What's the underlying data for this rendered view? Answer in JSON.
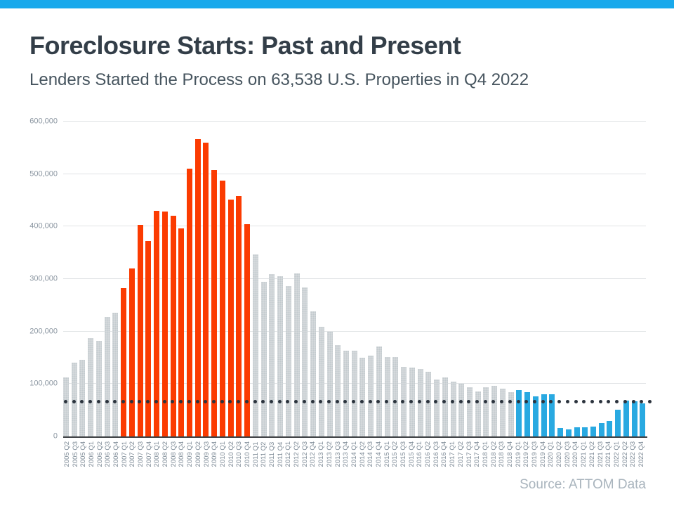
{
  "page": {
    "accent_bar_color": "#18a9ec",
    "title": "Foreclosure Starts: Past and Present",
    "subtitle": "Lenders Started the Process on 63,538 U.S. Properties in Q4 2022",
    "source": "Source: ATTOM Data"
  },
  "chart_data": {
    "type": "bar",
    "title": "Foreclosure Starts: Past and Present",
    "subtitle": "Lenders Started the Process on 63,538 U.S. Properties in Q4 2022",
    "xlabel": "",
    "ylabel": "",
    "ylim": [
      0,
      600000
    ],
    "grid": true,
    "legend": false,
    "yticks": [
      0,
      100000,
      200000,
      300000,
      400000,
      500000,
      600000
    ],
    "ytick_labels": [
      "0",
      "100,000",
      "200,000",
      "300,000",
      "400,000",
      "500,000",
      "600,000"
    ],
    "categories": [
      "2005 Q2",
      "2005 Q3",
      "2005 Q4",
      "2006 Q1",
      "2006 Q2",
      "2006 Q3",
      "2006 Q4",
      "2007 Q1",
      "2007 Q2",
      "2007 Q3",
      "2007 Q4",
      "2008 Q1",
      "2008 Q2",
      "2008 Q3",
      "2008 Q4",
      "2009 Q1",
      "2009 Q2",
      "2009 Q3",
      "2009 Q4",
      "2010 Q1",
      "2010 Q2",
      "2010 Q3",
      "2010 Q4",
      "2011 Q1",
      "2011 Q2",
      "2011 Q3",
      "2011 Q4",
      "2012 Q1",
      "2012 Q2",
      "2012 Q3",
      "2012 Q4",
      "2013 Q1",
      "2013 Q2",
      "2013 Q3",
      "2013 Q4",
      "2014 Q1",
      "2014 Q2",
      "2014 Q3",
      "2014 Q4",
      "2015 Q1",
      "2015 Q2",
      "2015 Q3",
      "2015 Q4",
      "2016 Q1",
      "2016 Q2",
      "2016 Q3",
      "2016 Q4",
      "2017 Q1",
      "2017 Q2",
      "2017 Q3",
      "2017 Q4",
      "2018 Q1",
      "2018 Q2",
      "2018 Q3",
      "2018 Q4",
      "2019 Q1",
      "2019 Q2",
      "2019 Q3",
      "2019 Q4",
      "2020 Q1",
      "2020 Q2",
      "2020 Q3",
      "2020 Q4",
      "2021 Q1",
      "2021 Q2",
      "2021 Q3",
      "2021 Q4",
      "2022 Q1",
      "2022 Q2",
      "2022 Q3",
      "2022 Q4"
    ],
    "values": [
      112000,
      140000,
      146000,
      188000,
      182000,
      228000,
      236000,
      282000,
      320000,
      403000,
      373000,
      430000,
      429000,
      420000,
      397000,
      510000,
      566000,
      560000,
      507000,
      487000,
      451000,
      458000,
      404000,
      347000,
      294000,
      309000,
      305000,
      286000,
      311000,
      284000,
      238000,
      209000,
      199000,
      174000,
      163000,
      163000,
      150000,
      154000,
      172000,
      152000,
      152000,
      133000,
      131000,
      129000,
      123000,
      109000,
      113000,
      105000,
      101000,
      94000,
      86000,
      94000,
      97000,
      91000,
      84000,
      89000,
      85000,
      76000,
      81000,
      80000,
      16000,
      13000,
      17000,
      17000,
      19000,
      26000,
      29000,
      51000,
      68000,
      67000,
      63538
    ],
    "color_segments": [
      {
        "from": 0,
        "to": 6,
        "color": "gray"
      },
      {
        "from": 7,
        "to": 22,
        "color": "red"
      },
      {
        "from": 23,
        "to": 54,
        "color": "gray"
      },
      {
        "from": 55,
        "to": 70,
        "color": "blue"
      }
    ],
    "palette": {
      "gray": "#d5d9dc",
      "red": "#fb3b01",
      "blue": "#29a9e1",
      "dot": "#2b333d",
      "gridline": "#e0e3e5",
      "axis": "#3d4043"
    },
    "reference_line": {
      "style": "dotted",
      "value": 63538
    }
  }
}
